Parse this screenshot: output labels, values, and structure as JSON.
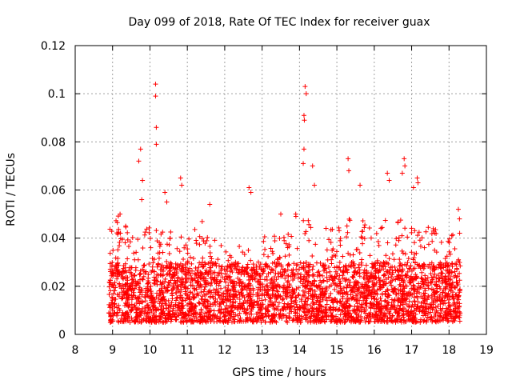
{
  "chart_data": {
    "type": "scatter",
    "title": "Day 099 of 2018, Rate Of TEC Index for receiver guax",
    "xlabel": "GPS time / hours",
    "ylabel": "ROTI / TECUs",
    "xlim": [
      8,
      19
    ],
    "ylim": [
      0,
      0.12
    ],
    "xticks": [
      8,
      9,
      10,
      11,
      12,
      13,
      14,
      15,
      16,
      17,
      18,
      19
    ],
    "yticks": [
      0,
      0.02,
      0.04,
      0.06,
      0.08,
      0.1,
      0.12
    ],
    "ytick_labels": [
      "0",
      "0.02",
      "0.04",
      "0.06",
      "0.08",
      "0.1",
      "0.12"
    ],
    "grid": true,
    "marker": "+",
    "series": [
      {
        "name": "ROTI",
        "color": "#ff0000",
        "data_range_hours": [
          8.9,
          18.3
        ],
        "baseline_band": [
          0.005,
          0.03
        ],
        "notable_points": [
          [
            9.75,
            0.077
          ],
          [
            9.7,
            0.072
          ],
          [
            9.8,
            0.064
          ],
          [
            9.78,
            0.056
          ],
          [
            10.15,
            0.104
          ],
          [
            10.15,
            0.099
          ],
          [
            10.17,
            0.086
          ],
          [
            10.17,
            0.079
          ],
          [
            10.4,
            0.059
          ],
          [
            10.45,
            0.055
          ],
          [
            10.82,
            0.065
          ],
          [
            10.85,
            0.062
          ],
          [
            12.65,
            0.061
          ],
          [
            12.7,
            0.059
          ],
          [
            14.12,
            0.077
          ],
          [
            14.15,
            0.103
          ],
          [
            14.18,
            0.1
          ],
          [
            14.12,
            0.091
          ],
          [
            14.13,
            0.089
          ],
          [
            14.1,
            0.071
          ],
          [
            14.35,
            0.07
          ],
          [
            14.4,
            0.062
          ],
          [
            15.3,
            0.073
          ],
          [
            15.32,
            0.068
          ],
          [
            15.62,
            0.062
          ],
          [
            16.35,
            0.067
          ],
          [
            16.4,
            0.064
          ],
          [
            16.8,
            0.073
          ],
          [
            16.82,
            0.07
          ],
          [
            16.75,
            0.067
          ],
          [
            17.15,
            0.065
          ],
          [
            17.17,
            0.063
          ],
          [
            17.05,
            0.061
          ],
          [
            18.25,
            0.052
          ],
          [
            18.28,
            0.048
          ],
          [
            9.2,
            0.05
          ],
          [
            9.35,
            0.045
          ],
          [
            11.6,
            0.054
          ],
          [
            13.5,
            0.05
          ],
          [
            13.9,
            0.05
          ]
        ]
      }
    ]
  }
}
